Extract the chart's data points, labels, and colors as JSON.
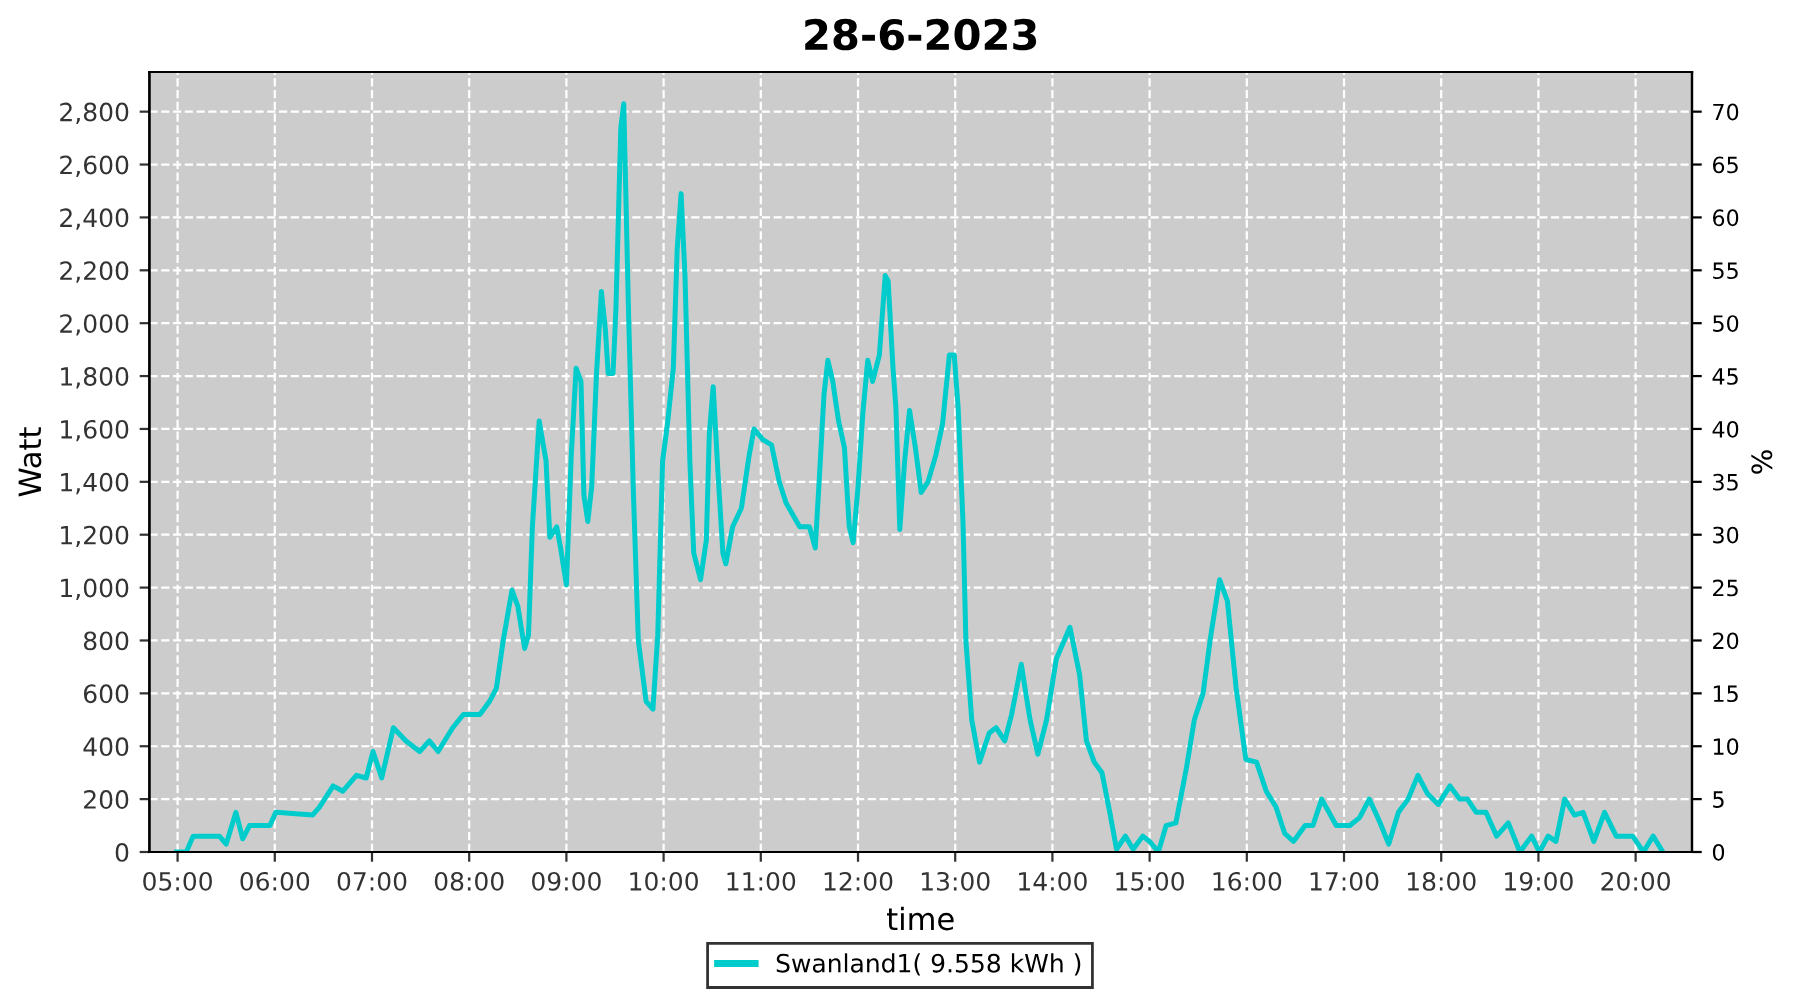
{
  "chart_data": {
    "type": "line",
    "title": "28-6-2023",
    "xlabel": "time",
    "ylabel": "Watt",
    "y2label": "%",
    "series": [
      {
        "name": "Swanland1( 9.558 kWh )",
        "color": "#00cccc",
        "x": [
          4.99,
          5.09,
          5.16,
          5.43,
          5.5,
          5.6,
          5.67,
          5.74,
          5.95,
          6.01,
          6.39,
          6.46,
          6.6,
          6.7,
          6.84,
          6.94,
          7.01,
          7.1,
          7.22,
          7.35,
          7.49,
          7.59,
          7.68,
          7.83,
          7.94,
          8.11,
          8.21,
          8.28,
          8.35,
          8.44,
          8.5,
          8.57,
          8.61,
          8.65,
          8.72,
          8.79,
          8.83,
          8.9,
          8.94,
          9.0,
          9.05,
          9.1,
          9.15,
          9.18,
          9.22,
          9.26,
          9.31,
          9.36,
          9.4,
          9.43,
          9.48,
          9.51,
          9.56,
          9.59,
          9.64,
          9.69,
          9.74,
          9.82,
          9.89,
          9.94,
          9.99,
          10.04,
          10.1,
          10.14,
          10.18,
          10.22,
          10.27,
          10.31,
          10.38,
          10.44,
          10.47,
          10.51,
          10.56,
          10.61,
          10.64,
          10.71,
          10.8,
          10.88,
          10.93,
          11.02,
          11.11,
          11.19,
          11.26,
          11.4,
          11.5,
          11.56,
          11.6,
          11.65,
          11.69,
          11.74,
          11.8,
          11.86,
          11.91,
          11.95,
          12.0,
          12.05,
          12.1,
          12.15,
          12.22,
          12.28,
          12.31,
          12.36,
          12.39,
          12.43,
          12.48,
          12.53,
          12.59,
          12.65,
          12.72,
          12.8,
          12.87,
          12.94,
          12.99,
          13.03,
          13.08,
          13.11,
          13.17,
          13.25,
          13.35,
          13.42,
          13.51,
          13.58,
          13.68,
          13.77,
          13.85,
          13.94,
          14.04,
          14.18,
          14.28,
          14.35,
          14.43,
          14.51,
          14.59,
          14.66,
          14.75,
          14.83,
          14.93,
          15.0,
          15.09,
          15.17,
          15.27,
          15.38,
          15.46,
          15.55,
          15.63,
          15.72,
          15.8,
          15.89,
          15.99,
          16.1,
          16.2,
          16.3,
          16.39,
          16.48,
          16.6,
          16.68,
          16.77,
          16.92,
          17.06,
          17.16,
          17.26,
          17.36,
          17.46,
          17.56,
          17.66,
          17.76,
          17.86,
          17.97,
          18.09,
          18.19,
          18.27,
          18.36,
          18.46,
          18.57,
          18.69,
          18.81,
          18.93,
          19.01,
          19.1,
          19.18,
          19.27,
          19.37,
          19.46,
          19.57,
          19.68,
          19.8,
          19.97,
          20.08,
          20.18,
          20.28
        ],
        "values": [
          0,
          0,
          60,
          60,
          30,
          150,
          50,
          100,
          100,
          150,
          140,
          170,
          250,
          230,
          290,
          280,
          380,
          280,
          470,
          420,
          380,
          420,
          380,
          470,
          520,
          520,
          570,
          620,
          800,
          990,
          930,
          770,
          820,
          1230,
          1630,
          1480,
          1190,
          1230,
          1150,
          1010,
          1500,
          1830,
          1780,
          1350,
          1250,
          1380,
          1810,
          2120,
          1980,
          1810,
          1810,
          2060,
          2740,
          2830,
          2030,
          1350,
          800,
          570,
          540,
          820,
          1480,
          1620,
          1830,
          2280,
          2490,
          2180,
          1480,
          1130,
          1030,
          1180,
          1580,
          1760,
          1430,
          1130,
          1090,
          1230,
          1300,
          1500,
          1600,
          1560,
          1540,
          1400,
          1320,
          1230,
          1230,
          1150,
          1400,
          1730,
          1860,
          1780,
          1630,
          1530,
          1230,
          1170,
          1380,
          1660,
          1860,
          1780,
          1880,
          2180,
          2160,
          1830,
          1680,
          1220,
          1480,
          1670,
          1530,
          1360,
          1400,
          1500,
          1620,
          1880,
          1880,
          1680,
          1250,
          800,
          500,
          340,
          450,
          470,
          420,
          520,
          710,
          500,
          370,
          500,
          730,
          850,
          670,
          420,
          340,
          300,
          150,
          10,
          60,
          10,
          60,
          40,
          0,
          100,
          110,
          320,
          500,
          600,
          820,
          1030,
          950,
          620,
          350,
          340,
          230,
          170,
          70,
          40,
          100,
          100,
          200,
          100,
          100,
          130,
          200,
          120,
          30,
          150,
          200,
          290,
          220,
          180,
          250,
          200,
          200,
          150,
          150,
          60,
          110,
          0,
          60,
          0,
          60,
          40,
          200,
          140,
          150,
          40,
          150,
          60,
          60,
          0,
          60,
          0
        ]
      }
    ],
    "xlim": [
      4.71,
      20.58
    ],
    "xticks": [
      {
        "value": 5,
        "label": "05:00"
      },
      {
        "value": 6,
        "label": "06:00"
      },
      {
        "value": 7,
        "label": "07:00"
      },
      {
        "value": 8,
        "label": "08:00"
      },
      {
        "value": 9,
        "label": "09:00"
      },
      {
        "value": 10,
        "label": "10:00"
      },
      {
        "value": 11,
        "label": "11:00"
      },
      {
        "value": 12,
        "label": "12:00"
      },
      {
        "value": 13,
        "label": "13:00"
      },
      {
        "value": 14,
        "label": "14:00"
      },
      {
        "value": 15,
        "label": "15:00"
      },
      {
        "value": 16,
        "label": "16:00"
      },
      {
        "value": 17,
        "label": "17:00"
      },
      {
        "value": 18,
        "label": "18:00"
      },
      {
        "value": 19,
        "label": "19:00"
      },
      {
        "value": 20,
        "label": "20:00"
      }
    ],
    "ylim": [
      0,
      2950
    ],
    "yticks": [
      0,
      200,
      400,
      600,
      800,
      {
        "value": 1000,
        "label": "1,000"
      },
      {
        "value": 1200,
        "label": "1,200"
      },
      {
        "value": 1400,
        "label": "1,400"
      },
      {
        "value": 1600,
        "label": "1,600"
      },
      {
        "value": 1800,
        "label": "1,800"
      },
      {
        "value": 2000,
        "label": "2,000"
      },
      {
        "value": 2200,
        "label": "2,200"
      },
      {
        "value": 2400,
        "label": "2,400"
      },
      {
        "value": 2600,
        "label": "2,600"
      },
      {
        "value": 2800,
        "label": "2,800"
      }
    ],
    "y2lim": [
      0,
      73.75
    ],
    "y2ticks": [
      0,
      5,
      10,
      15,
      20,
      25,
      30,
      35,
      40,
      45,
      50,
      55,
      60,
      65,
      70
    ],
    "grid": true,
    "legend": "bottom",
    "marker": "none",
    "line_style": "solid"
  }
}
